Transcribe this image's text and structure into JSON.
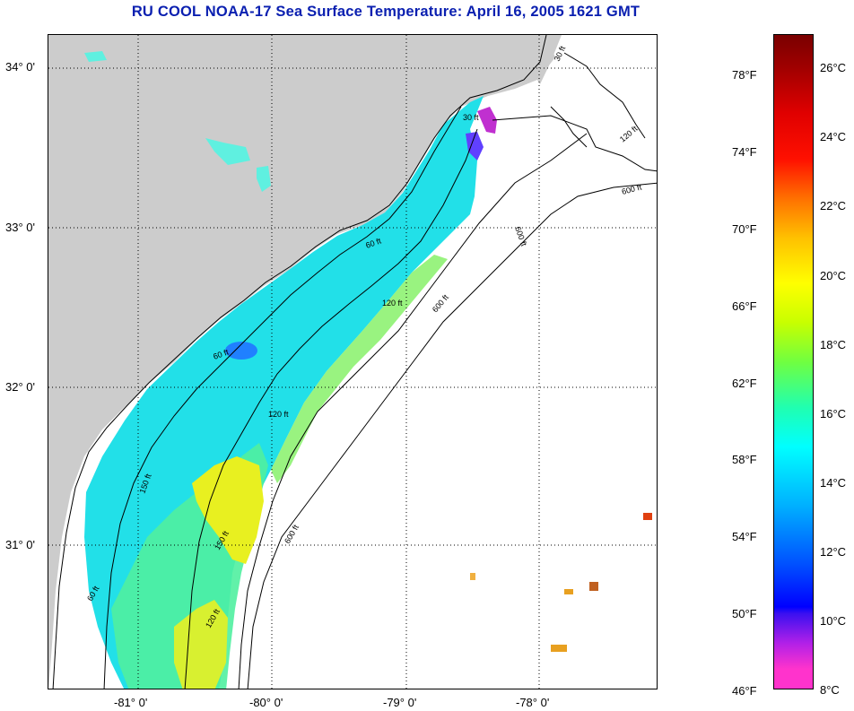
{
  "title": "RU COOL  NOAA-17  Sea Surface Temperature:  April 16, 2005 1621 GMT",
  "map": {
    "lat_labels": [
      "34° 0'",
      "33° 0'",
      "32° 0'",
      "31° 0'"
    ],
    "lon_labels": [
      "-81° 0'",
      "-80° 0'",
      "-79° 0'",
      "-78° 0'"
    ],
    "contour_labels": [
      "30 ft",
      "120 ft",
      "600 ft",
      "60 ft",
      "120 ft",
      "600 ft",
      "60 ft",
      "120 ft",
      "150 ft",
      "600 ft",
      "150 ft",
      "60 ft",
      "120 ft",
      "600 ft",
      "30 ft"
    ],
    "colors": {
      "land": "#cccccc",
      "ocean_nodata": "#ffffff",
      "contour": "#000000",
      "grid": "#000000"
    }
  },
  "colorbar": {
    "fahrenheit_labels": [
      "78°F",
      "74°F",
      "70°F",
      "66°F",
      "62°F",
      "58°F",
      "54°F",
      "50°F",
      "46°F"
    ],
    "celsius_labels": [
      "26°C",
      "24°C",
      "22°C",
      "20°C",
      "18°C",
      "16°C",
      "14°C",
      "12°C",
      "10°C",
      "8°C"
    ]
  }
}
